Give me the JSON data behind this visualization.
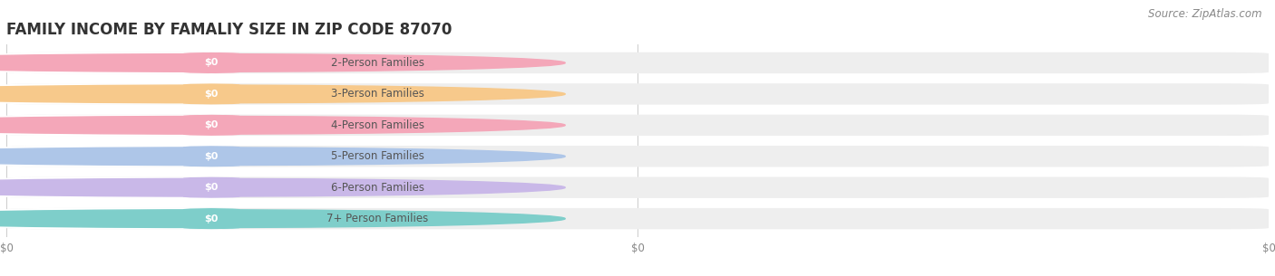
{
  "title": "FAMILY INCOME BY FAMALIY SIZE IN ZIP CODE 87070",
  "source_text": "Source: ZipAtlas.com",
  "categories": [
    "2-Person Families",
    "3-Person Families",
    "4-Person Families",
    "5-Person Families",
    "6-Person Families",
    "7+ Person Families"
  ],
  "values": [
    0,
    0,
    0,
    0,
    0,
    0
  ],
  "bar_colors": [
    "#f4a7b9",
    "#f7c98b",
    "#f4a7b9",
    "#aec6e8",
    "#c9b8e8",
    "#7ececa"
  ],
  "label_bg_colors": [
    "#fce8ee",
    "#fdefd8",
    "#fce8ee",
    "#ddeaf8",
    "#ece6f8",
    "#cceeee"
  ],
  "bar_bg_color": "#f0f0f0",
  "value_labels": [
    "$0",
    "$0",
    "$0",
    "$0",
    "$0",
    "$0"
  ],
  "x_tick_labels": [
    "$0",
    "$0",
    "$0"
  ],
  "title_fontsize": 12,
  "label_fontsize": 8.5,
  "value_fontsize": 8,
  "source_fontsize": 8.5,
  "background_color": "#ffffff"
}
